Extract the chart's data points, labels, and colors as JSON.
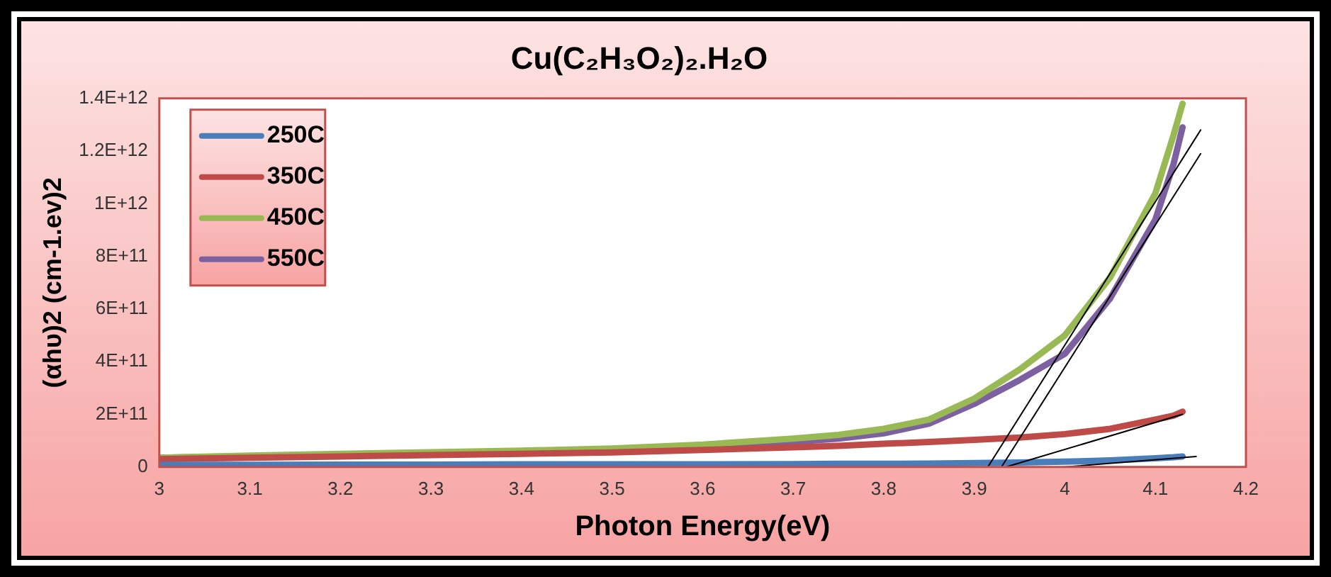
{
  "chart_data": {
    "type": "line",
    "title": "Cu(C₂H₃O₂)₂.H₂O",
    "xlabel": "Photon Energy(eV)",
    "ylabel": "(αhυ)2 (cm-1.ev)2",
    "x": [
      3.0,
      3.1,
      3.2,
      3.3,
      3.4,
      3.5,
      3.6,
      3.7,
      3.75,
      3.8,
      3.85,
      3.9,
      3.95,
      4.0,
      4.05,
      4.1,
      4.12,
      4.13
    ],
    "series": [
      {
        "name": "250C",
        "color": "#4a7ebb",
        "values": [
          8000000000.0,
          8000000000.0,
          9000000000.0,
          9000000000.0,
          10000000000.0,
          10000000000.0,
          10000000000.0,
          11000000000.0,
          12000000000.0,
          12000000000.0,
          13000000000.0,
          15000000000.0,
          17000000000.0,
          20000000000.0,
          25000000000.0,
          33000000000.0,
          37000000000.0,
          40000000000.0
        ]
      },
      {
        "name": "350C",
        "color": "#be4b48",
        "values": [
          30000000000.0,
          35000000000.0,
          40000000000.0,
          45000000000.0,
          50000000000.0,
          55000000000.0,
          65000000000.0,
          75000000000.0,
          80000000000.0,
          88000000000.0,
          95000000000.0,
          103000000000.0,
          112000000000.0,
          125000000000.0,
          145000000000.0,
          180000000000.0,
          195000000000.0,
          210000000000.0
        ]
      },
      {
        "name": "450C",
        "color": "#98b954",
        "values": [
          35000000000.0,
          43000000000.0,
          50000000000.0,
          56000000000.0,
          62000000000.0,
          70000000000.0,
          85000000000.0,
          108000000000.0,
          122000000000.0,
          145000000000.0,
          180000000000.0,
          260000000000.0,
          370000000000.0,
          500000000000.0,
          720000000000.0,
          1040000000000.0,
          1260000000000.0,
          1380000000000.0
        ]
      },
      {
        "name": "550C",
        "color": "#7d60a0",
        "values": [
          35000000000.0,
          40000000000.0,
          46000000000.0,
          51000000000.0,
          57000000000.0,
          64000000000.0,
          78000000000.0,
          95000000000.0,
          108000000000.0,
          128000000000.0,
          165000000000.0,
          240000000000.0,
          330000000000.0,
          430000000000.0,
          640000000000.0,
          940000000000.0,
          1150000000000.0,
          1290000000000.0
        ]
      },
      {
        "type": "line",
        "color": "#000000",
        "x": [
          3.915,
          4.15
        ],
        "values": [
          0,
          1280000000000.0
        ]
      },
      {
        "type": "line",
        "color": "#000000",
        "x": [
          3.93,
          4.15
        ],
        "values": [
          0,
          1190000000000.0
        ]
      },
      {
        "type": "line",
        "color": "#000000",
        "x": [
          3.935,
          4.13
        ],
        "values": [
          0,
          200000000000.0
        ]
      },
      {
        "type": "line",
        "color": "#000000",
        "x": [
          4.0,
          4.145
        ],
        "values": [
          0,
          40000000000.0
        ]
      }
    ],
    "xlim": [
      3,
      4.2
    ],
    "xticks": [
      3,
      3.1,
      3.2,
      3.3,
      3.4,
      3.5,
      3.6,
      3.7,
      3.8,
      3.9,
      4,
      4.1,
      4.2
    ],
    "ylim": [
      0,
      1400000000000.0
    ],
    "yticks": [
      0,
      {
        "value": 200000000000.0,
        "label": "2E+11"
      },
      {
        "value": 400000000000.0,
        "label": "4E+11"
      },
      {
        "value": 600000000000.0,
        "label": "6E+11"
      },
      {
        "value": 800000000000.0,
        "label": "8E+11"
      },
      {
        "value": 1000000000000.0,
        "label": "1E+12"
      },
      {
        "value": 1200000000000.0,
        "label": "1.2E+12"
      },
      {
        "value": 1400000000000.0,
        "label": "1.4E+12"
      }
    ],
    "grid": false,
    "legend": "top left",
    "marker": "none",
    "line_style": "solid"
  }
}
